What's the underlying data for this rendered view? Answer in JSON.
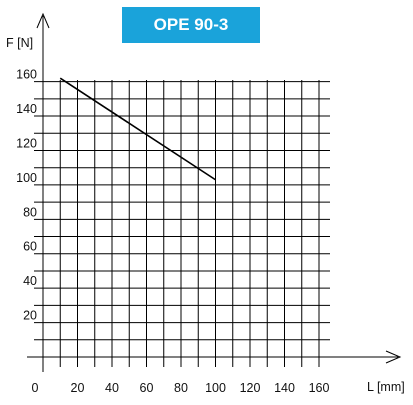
{
  "chart_data": {
    "type": "line",
    "title": "OPE 90-3",
    "xlabel": "L [mm]",
    "ylabel": "F [N]",
    "xlim": [
      0,
      170
    ],
    "ylim": [
      0,
      170
    ],
    "x_ticks": [
      "0",
      "20",
      "40",
      "60",
      "80",
      "100",
      "120",
      "140",
      "160"
    ],
    "y_ticks": [
      "160",
      "140",
      "120",
      "100",
      "80",
      "60",
      "40",
      "20"
    ],
    "grid": true,
    "series": [
      {
        "x": [
          10,
          100
        ],
        "y": [
          162,
          103
        ],
        "color": "#000000"
      }
    ],
    "colors": {
      "title_background": "#1aa3da",
      "title_text": "#ffffff"
    }
  }
}
